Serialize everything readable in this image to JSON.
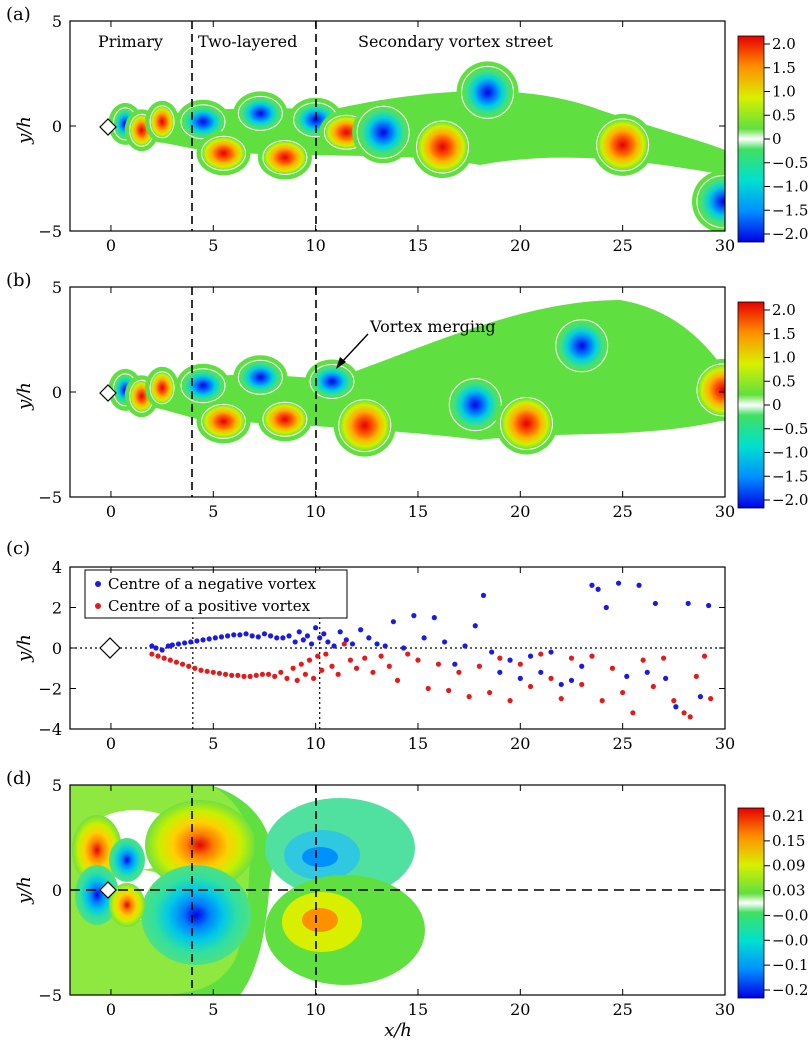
{
  "panel_labels": [
    "(a)",
    "(b)",
    "(c)",
    "(d)"
  ],
  "axis_labels": {
    "x": "x/h",
    "y": "y/h"
  },
  "panel_a": {
    "region_labels": [
      "Primary",
      "Two-layered",
      "Secondary vortex street"
    ],
    "colorbar_ticks": [
      "2.0",
      "1.5",
      "1.0",
      "0.5",
      "0",
      "−0.5",
      "−1.0",
      "−1.5",
      "−2.0"
    ]
  },
  "panel_b": {
    "annotation": "Vortex merging",
    "colorbar_ticks": [
      "2.0",
      "1.5",
      "1.0",
      "0.5",
      "0",
      "−0.5",
      "−1.0",
      "−1.5",
      "−2.0"
    ]
  },
  "panel_d": {
    "colorbar_ticks": [
      "0.21",
      "0.15",
      "0.09",
      "0.03",
      "−0.03",
      "−0.09",
      "−0.15",
      "−0.21"
    ]
  },
  "chart_data": [
    {
      "type": "heatmap",
      "panel": "(a)",
      "xlim": [
        -2,
        30
      ],
      "ylim": [
        -5,
        5
      ],
      "xticks": [
        0,
        5,
        10,
        15,
        20,
        25,
        30
      ],
      "yticks": [
        -5,
        0,
        5
      ],
      "xlabel": "",
      "ylabel": "y/h",
      "colorbar_range": [
        -2.0,
        2.0
      ],
      "dashed_lines_x": [
        4,
        10.2
      ],
      "vortices": [
        {
          "x": 0.7,
          "y": 0.1,
          "sign": -1
        },
        {
          "x": 1.5,
          "y": -0.2,
          "sign": 1
        },
        {
          "x": 2.5,
          "y": 0.2,
          "sign": 1
        },
        {
          "x": 4.5,
          "y": 0.2,
          "sign": -1
        },
        {
          "x": 5.5,
          "y": -1.3,
          "sign": 1
        },
        {
          "x": 7.3,
          "y": 0.6,
          "sign": -1
        },
        {
          "x": 8.5,
          "y": -1.5,
          "sign": 1
        },
        {
          "x": 10.0,
          "y": 0.3,
          "sign": -1
        },
        {
          "x": 11.5,
          "y": -0.3,
          "sign": 1
        },
        {
          "x": 13.3,
          "y": -0.3,
          "sign": -1
        },
        {
          "x": 16.2,
          "y": -1.0,
          "sign": 1
        },
        {
          "x": 18.4,
          "y": 1.6,
          "sign": -1
        },
        {
          "x": 25.0,
          "y": -0.9,
          "sign": 1
        },
        {
          "x": 29.9,
          "y": -3.6,
          "sign": -1
        }
      ]
    },
    {
      "type": "heatmap",
      "panel": "(b)",
      "xlim": [
        -2,
        30
      ],
      "ylim": [
        -5,
        5
      ],
      "xticks": [
        0,
        5,
        10,
        15,
        20,
        25,
        30
      ],
      "yticks": [
        -5,
        0,
        5
      ],
      "xlabel": "",
      "ylabel": "y/h",
      "colorbar_range": [
        -2.0,
        2.0
      ],
      "dashed_lines_x": [
        4,
        10.2
      ],
      "vortices": [
        {
          "x": 0.7,
          "y": 0.1,
          "sign": -1
        },
        {
          "x": 1.5,
          "y": -0.2,
          "sign": 1
        },
        {
          "x": 2.5,
          "y": 0.2,
          "sign": 1
        },
        {
          "x": 4.5,
          "y": 0.3,
          "sign": -1
        },
        {
          "x": 5.5,
          "y": -1.4,
          "sign": 1
        },
        {
          "x": 7.3,
          "y": 0.7,
          "sign": -1
        },
        {
          "x": 8.5,
          "y": -1.3,
          "sign": 1
        },
        {
          "x": 10.8,
          "y": 0.5,
          "sign": -1
        },
        {
          "x": 12.4,
          "y": -1.6,
          "sign": 1
        },
        {
          "x": 17.8,
          "y": -0.6,
          "sign": -1
        },
        {
          "x": 20.3,
          "y": -1.5,
          "sign": 1
        },
        {
          "x": 23.0,
          "y": 2.2,
          "sign": -1
        },
        {
          "x": 29.9,
          "y": 0.1,
          "sign": 1
        }
      ]
    },
    {
      "type": "scatter",
      "panel": "(c)",
      "xlim": [
        -2,
        30
      ],
      "ylim": [
        -4,
        4
      ],
      "xticks": [
        0,
        5,
        10,
        15,
        20,
        25,
        30
      ],
      "yticks": [
        -4,
        -2,
        0,
        2,
        4
      ],
      "xlabel": "",
      "ylabel": "y/h",
      "legend": "top-left",
      "series": [
        {
          "name": "Centre of a negative vortex",
          "color": "#1a1ae6",
          "x": [
            2.0,
            2.2,
            2.5,
            2.8,
            3.0,
            3.3,
            3.6,
            3.9,
            4.2,
            4.5,
            4.8,
            5.1,
            5.4,
            5.7,
            6.0,
            6.3,
            6.6,
            6.9,
            7.2,
            7.5,
            7.8,
            8.1,
            8.4,
            8.7,
            9.0,
            9.2,
            9.4,
            9.6,
            9.8,
            10.0,
            10.2,
            10.4,
            10.6,
            10.9,
            11.2,
            11.5,
            11.8,
            12.2,
            12.6,
            13.0,
            13.4,
            13.8,
            14.3,
            14.8,
            15.3,
            15.8,
            16.3,
            16.8,
            17.3,
            17.8,
            18.2,
            18.6,
            19.0,
            19.5,
            20.0,
            20.5,
            21.0,
            21.5,
            22.0,
            22.5,
            23.0,
            23.5,
            23.8,
            24.2,
            24.8,
            25.2,
            25.8,
            26.2,
            26.6,
            27.1,
            27.6,
            28.2,
            28.8,
            29.2
          ],
          "y": [
            0.1,
            0.0,
            -0.1,
            0.1,
            0.15,
            0.2,
            0.25,
            0.3,
            0.35,
            0.4,
            0.45,
            0.5,
            0.55,
            0.6,
            0.65,
            0.65,
            0.7,
            0.6,
            0.55,
            0.7,
            0.6,
            0.5,
            0.5,
            0.6,
            0.3,
            0.8,
            0.4,
            0.6,
            0.2,
            1.0,
            0.5,
            0.7,
            0.3,
            0.1,
            0.8,
            0.4,
            0.2,
            0.9,
            0.5,
            0.2,
            0.1,
            1.3,
            0.0,
            1.6,
            0.5,
            1.5,
            0.3,
            -0.8,
            0.1,
            1.1,
            2.6,
            -0.2,
            -1.2,
            -0.6,
            -1.5,
            -0.4,
            -1.2,
            -0.2,
            -1.8,
            -1.6,
            -0.9,
            3.1,
            2.9,
            2.0,
            3.2,
            -1.4,
            3.1,
            -1.2,
            2.2,
            -1.5,
            -2.9,
            2.2,
            -2.4,
            2.1
          ]
        },
        {
          "name": "Centre of a positive vortex",
          "color": "#e61a1a",
          "x": [
            2.0,
            2.3,
            2.6,
            2.9,
            3.2,
            3.5,
            3.8,
            4.1,
            4.4,
            4.7,
            5.0,
            5.3,
            5.6,
            5.9,
            6.2,
            6.5,
            6.8,
            7.1,
            7.4,
            7.7,
            8.0,
            8.3,
            8.6,
            8.9,
            9.1,
            9.3,
            9.5,
            9.7,
            9.9,
            10.1,
            10.3,
            10.5,
            10.8,
            11.1,
            11.4,
            11.7,
            12.0,
            12.4,
            12.8,
            13.2,
            13.6,
            14.0,
            14.5,
            15.0,
            15.5,
            16.0,
            16.5,
            17.0,
            17.5,
            18.0,
            18.5,
            19.0,
            19.5,
            20.0,
            20.5,
            21.0,
            21.5,
            22.0,
            22.5,
            23.0,
            23.5,
            24.0,
            24.5,
            25.0,
            25.5,
            26.0,
            26.5,
            27.0,
            27.5,
            28.0,
            28.3,
            28.6,
            29.0,
            29.3
          ],
          "y": [
            -0.3,
            -0.4,
            -0.5,
            -0.6,
            -0.7,
            -0.8,
            -0.9,
            -1.0,
            -1.1,
            -1.15,
            -1.2,
            -1.25,
            -1.3,
            -1.35,
            -1.35,
            -1.4,
            -1.4,
            -1.35,
            -1.3,
            -1.3,
            -1.4,
            -1.2,
            -1.5,
            -1.0,
            -1.6,
            -0.8,
            -1.3,
            -0.6,
            -1.5,
            -0.4,
            -1.1,
            -0.3,
            -0.9,
            -1.3,
            0.2,
            -0.6,
            -1.0,
            -0.5,
            -1.2,
            -0.4,
            -0.9,
            -1.6,
            -0.3,
            -0.6,
            -2.0,
            -0.8,
            -2.1,
            -1.2,
            -2.4,
            -0.9,
            -2.2,
            -0.5,
            -2.6,
            -0.8,
            -1.9,
            -0.3,
            -1.5,
            -2.5,
            -0.5,
            -1.8,
            -0.4,
            -2.6,
            -1.0,
            -2.2,
            -3.2,
            -0.6,
            -1.9,
            -0.5,
            -2.6,
            -3.2,
            -3.4,
            -1.4,
            -0.4,
            -2.5
          ]
        }
      ],
      "reference_lines": {
        "x": [
          4,
          10.2
        ],
        "y": [
          0
        ]
      }
    },
    {
      "type": "heatmap",
      "panel": "(d)",
      "xlim": [
        -2,
        30
      ],
      "ylim": [
        -5,
        5
      ],
      "xticks": [
        0,
        5,
        10,
        15,
        20,
        25,
        30
      ],
      "yticks": [
        -5,
        0,
        5
      ],
      "xlabel": "x/h",
      "ylabel": "y/h",
      "colorbar_range": [
        -0.21,
        0.21
      ],
      "dashed_lines_x": [
        4,
        10.2
      ],
      "dashed_lines_y": [
        0
      ]
    }
  ]
}
